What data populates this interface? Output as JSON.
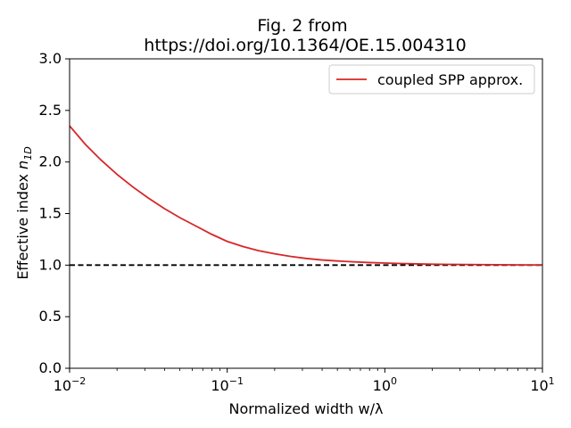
{
  "chart_data": {
    "type": "line",
    "title_line1": "Fig. 2 from",
    "title_line2": "https://doi.org/10.1364/OE.15.004310",
    "xlabel": "Normalized width w/λ",
    "ylabel_main": "Effective index ",
    "ylabel_italic": "n",
    "ylabel_sub": "1D",
    "x_scale": "log",
    "xlim": [
      0.01,
      10
    ],
    "ylim": [
      0.0,
      3.0
    ],
    "x_ticks": [
      {
        "value": 0.01,
        "base": "10",
        "exp": "−2"
      },
      {
        "value": 0.1,
        "base": "10",
        "exp": "−1"
      },
      {
        "value": 1,
        "base": "10",
        "exp": "0"
      },
      {
        "value": 10,
        "base": "10",
        "exp": "1"
      }
    ],
    "y_ticks": [
      {
        "value": 0.0,
        "label": "0.0"
      },
      {
        "value": 0.5,
        "label": "0.5"
      },
      {
        "value": 1.0,
        "label": "1.0"
      },
      {
        "value": 1.5,
        "label": "1.5"
      },
      {
        "value": 2.0,
        "label": "2.0"
      },
      {
        "value": 2.5,
        "label": "2.5"
      },
      {
        "value": 3.0,
        "label": "3.0"
      }
    ],
    "legend_position": "top-right",
    "series": [
      {
        "name": "coupled SPP approx.",
        "color": "#d62728",
        "x": [
          0.01,
          0.0126,
          0.0158,
          0.02,
          0.0251,
          0.0316,
          0.0398,
          0.0501,
          0.0631,
          0.0794,
          0.1,
          0.126,
          0.158,
          0.2,
          0.251,
          0.316,
          0.398,
          0.501,
          0.631,
          0.794,
          1.0,
          1.26,
          1.58,
          2.0,
          2.51,
          3.16,
          3.98,
          5.01,
          6.31,
          7.94,
          10.0
        ],
        "y": [
          2.35,
          2.17,
          2.02,
          1.88,
          1.76,
          1.65,
          1.55,
          1.46,
          1.38,
          1.3,
          1.23,
          1.18,
          1.14,
          1.11,
          1.085,
          1.065,
          1.05,
          1.04,
          1.032,
          1.025,
          1.02,
          1.016,
          1.012,
          1.009,
          1.007,
          1.006,
          1.005,
          1.004,
          1.003,
          1.002,
          1.002
        ]
      }
    ],
    "reference_line": {
      "y": 1.0,
      "style": "dashed",
      "color": "#000000"
    }
  }
}
